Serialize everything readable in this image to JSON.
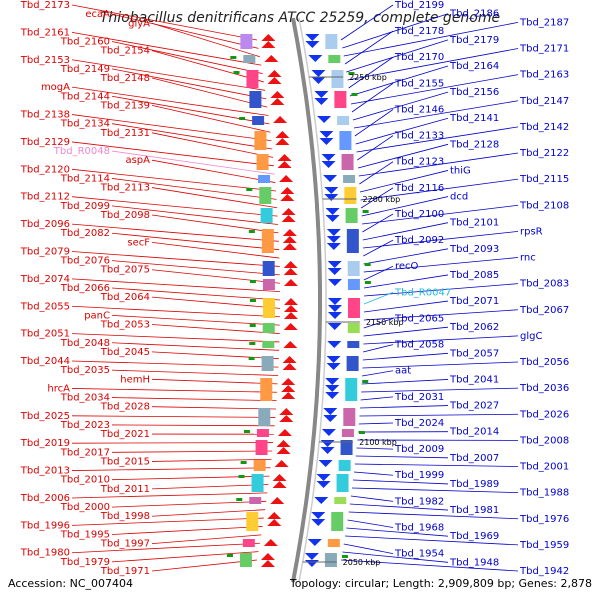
{
  "title": "Thiobacillus denitrificans ATCC 25259, complete genome",
  "footer": {
    "accession": "Accession: NC_007404",
    "summary": "Topology: circular; Length: 2,909,809 bp; Genes: 2,878"
  },
  "ticks": [
    "2250 kbp",
    "2200 kbp",
    "2150 kbp",
    "2100 kbp",
    "2050 kbp"
  ],
  "colors": {
    "forward_label": "#dd0000",
    "reverse_label": "#0000cc",
    "rrna_forward_label": "#ee88cc",
    "rrna_reverse_label": "#22bbdd",
    "backbone": "#888888"
  },
  "left_labels": [
    "Tbd_2173",
    "ecaA",
    "glyA",
    "Tbd_2161",
    "Tbd_2160",
    "Tbd_2154",
    "Tbd_2153",
    "Tbd_2149",
    "Tbd_2148",
    "mogA",
    "Tbd_2144",
    "Tbd_2139",
    "Tbd_2138",
    "Tbd_2134",
    "Tbd_2131",
    "Tbd_2129",
    "Tbd_R0048",
    "aspA",
    "Tbd_2120",
    "Tbd_2114",
    "Tbd_2113",
    "Tbd_2112",
    "Tbd_2099",
    "Tbd_2098",
    "Tbd_2096",
    "Tbd_2082",
    "secF",
    "Tbd_2079",
    "Tbd_2076",
    "Tbd_2075",
    "Tbd_2074",
    "Tbd_2066",
    "Tbd_2064",
    "Tbd_2055",
    "panC",
    "Tbd_2053",
    "Tbd_2051",
    "Tbd_2048",
    "Tbd_2045",
    "Tbd_2044",
    "Tbd_2035",
    "hemH",
    "hrcA",
    "Tbd_2034",
    "Tbd_2028",
    "Tbd_2025",
    "Tbd_2023",
    "Tbd_2021",
    "Tbd_2019",
    "Tbd_2017",
    "Tbd_2015",
    "Tbd_2013",
    "Tbd_2010",
    "Tbd_2011",
    "Tbd_2006",
    "Tbd_2000",
    "Tbd_1998",
    "Tbd_1996",
    "Tbd_1995",
    "Tbd_1997",
    "Tbd_1980",
    "Tbd_1979",
    "Tbd_1971"
  ],
  "right_labels": [
    "Tbd_2199",
    "Tbd_2186",
    "Tbd_2187",
    "Tbd_2178",
    "Tbd_2179",
    "Tbd_2171",
    "Tbd_2170",
    "Tbd_2164",
    "Tbd_2163",
    "Tbd_2155",
    "Tbd_2156",
    "Tbd_2147",
    "Tbd_2146",
    "Tbd_2141",
    "Tbd_2142",
    "Tbd_2133",
    "Tbd_2128",
    "Tbd_2122",
    "Tbd_2123",
    "thiG",
    "Tbd_2115",
    "Tbd_2116",
    "dcd",
    "Tbd_2108",
    "Tbd_2100",
    "Tbd_2101",
    "rpsR",
    "Tbd_2092",
    "Tbd_2093",
    "rnc",
    "recO",
    "Tbd_2085",
    "Tbd_2083",
    "Tbd_R0047",
    "Tbd_2071",
    "Tbd_2067",
    "Tbd_2065",
    "Tbd_2062",
    "glgC",
    "Tbd_2058",
    "Tbd_2057",
    "Tbd_2056",
    "aat",
    "Tbd_2041",
    "Tbd_2036",
    "Tbd_2031",
    "Tbd_2027",
    "Tbd_2026",
    "Tbd_2024",
    "Tbd_2014",
    "Tbd_2008",
    "Tbd_2009",
    "Tbd_2007",
    "Tbd_2001",
    "Tbd_1999",
    "Tbd_1989",
    "Tbd_1988",
    "Tbd_1982",
    "Tbd_1981",
    "Tbd_1976",
    "Tbd_1968",
    "Tbd_1969",
    "Tbd_1959",
    "Tbd_1954",
    "Tbd_1948",
    "Tbd_1942"
  ]
}
